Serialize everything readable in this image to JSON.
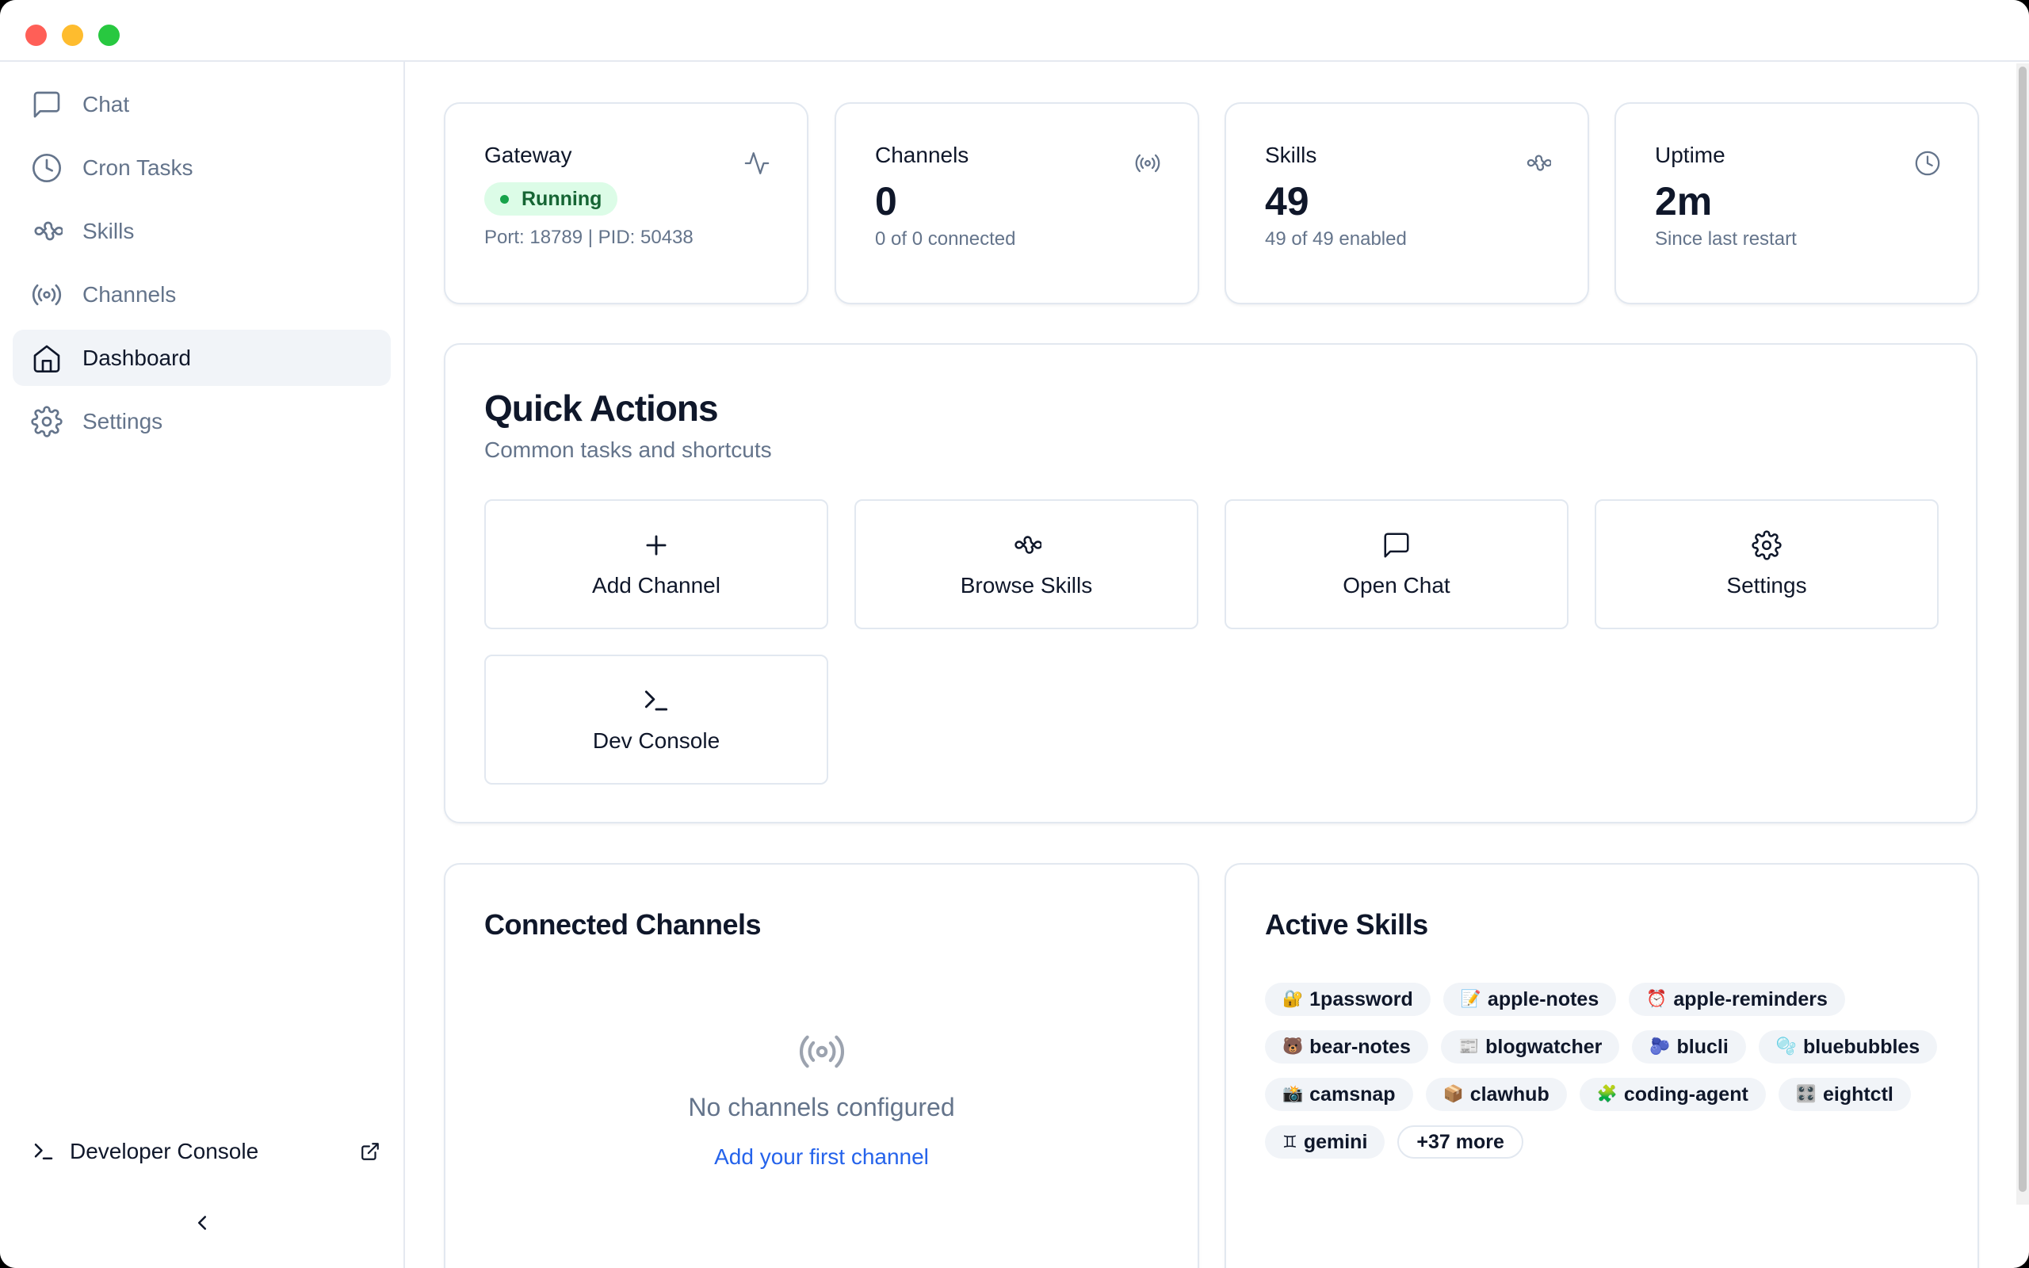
{
  "window": {
    "traffic_lights": {
      "close": "#ff5f57",
      "minimize": "#febc2e",
      "zoom": "#28c840"
    }
  },
  "sidebar": {
    "items": [
      {
        "label": "Chat",
        "icon": "message-square-icon"
      },
      {
        "label": "Cron Tasks",
        "icon": "clock-icon"
      },
      {
        "label": "Skills",
        "icon": "puzzle-icon"
      },
      {
        "label": "Channels",
        "icon": "radio-icon"
      },
      {
        "label": "Dashboard",
        "icon": "home-icon",
        "active": true
      },
      {
        "label": "Settings",
        "icon": "gear-icon"
      }
    ],
    "developer_console": "Developer Console"
  },
  "stats": {
    "gateway": {
      "title": "Gateway",
      "status": "Running",
      "detail": "Port: 18789 | PID: 50438",
      "status_color": "#16a34a"
    },
    "channels": {
      "title": "Channels",
      "value": "0",
      "sub": "0 of 0 connected"
    },
    "skills": {
      "title": "Skills",
      "value": "49",
      "sub": "49 of 49 enabled"
    },
    "uptime": {
      "title": "Uptime",
      "value": "2m",
      "sub": "Since last restart"
    }
  },
  "quick_actions": {
    "title": "Quick Actions",
    "subtitle": "Common tasks and shortcuts",
    "items": [
      "Add Channel",
      "Browse Skills",
      "Open Chat",
      "Settings",
      "Dev Console"
    ]
  },
  "connected_channels": {
    "title": "Connected Channels",
    "empty_text": "No channels configured",
    "link": "Add your first channel",
    "link_color": "#2563eb"
  },
  "active_skills": {
    "title": "Active Skills",
    "tags": [
      {
        "emoji": "🔐",
        "name": "1password"
      },
      {
        "emoji": "📝",
        "name": "apple-notes"
      },
      {
        "emoji": "⏰",
        "name": "apple-reminders"
      },
      {
        "emoji": "🐻",
        "name": "bear-notes"
      },
      {
        "emoji": "📰",
        "name": "blogwatcher"
      },
      {
        "emoji": "🫐",
        "name": "blucli"
      },
      {
        "emoji": "🫧",
        "name": "bluebubbles"
      },
      {
        "emoji": "📸",
        "name": "camsnap"
      },
      {
        "emoji": "📦",
        "name": "clawhub"
      },
      {
        "emoji": "🧩",
        "name": "coding-agent"
      },
      {
        "emoji": "🎛️",
        "name": "eightctl"
      },
      {
        "emoji": "♊",
        "name": "gemini"
      }
    ],
    "more": "+37 more"
  }
}
